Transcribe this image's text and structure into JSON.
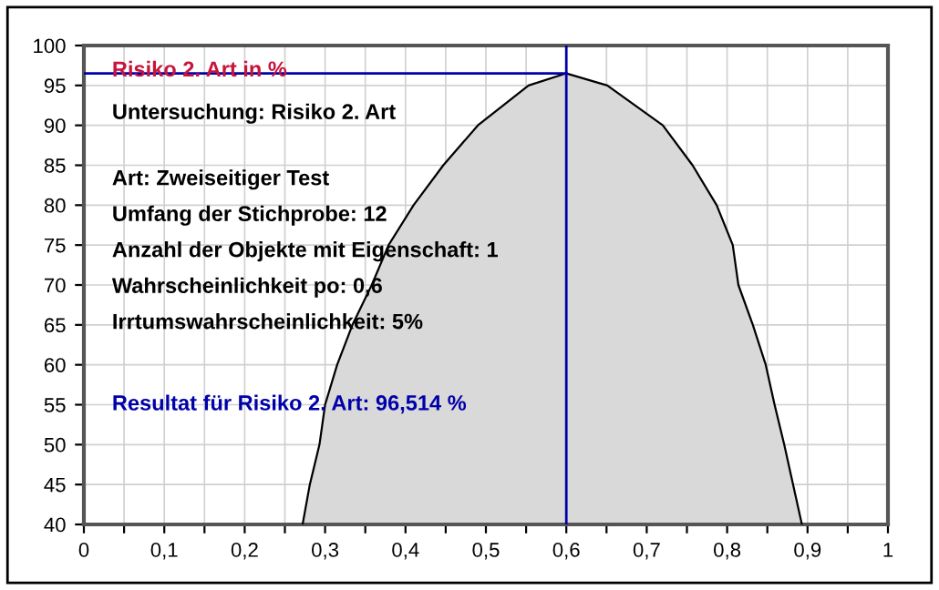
{
  "chart_data": {
    "type": "area",
    "title": "Risiko 2. Art in %",
    "annotations": [
      "Untersuchung: Risiko 2. Art",
      "Art: Zweiseitiger Test",
      "Umfang der Stichprobe: 12",
      "Anzahl der Objekte mit Eigenschaft: 1",
      "Wahrscheinlichkeit po: 0,6",
      "Irrtumswahrscheinlichkeit: 5%"
    ],
    "series": [
      {
        "color": "#d9d9d9",
        "x": [
          0.272,
          0.281,
          0.293,
          0.3,
          0.315,
          0.334,
          0.358,
          0.379,
          0.41,
          0.447,
          0.49,
          0.553,
          0.6,
          0.651,
          0.72,
          0.757,
          0.787,
          0.807,
          0.814,
          0.832,
          0.848,
          0.859,
          0.871,
          0.893
        ],
        "values": [
          40,
          45,
          50,
          55,
          60,
          65,
          70,
          75,
          80,
          85,
          90,
          95,
          96.514,
          95,
          90,
          85,
          80,
          75,
          70,
          65,
          60,
          55,
          50,
          40
        ]
      }
    ],
    "ref_lines": [
      {
        "axis": "x",
        "value": 0.6,
        "color": "#0000aa"
      },
      {
        "axis": "y",
        "value": 96.514,
        "color": "#0000aa",
        "label": "Resultat für Risiko 2. Art: 96,514 %"
      }
    ],
    "xlim": [
      0,
      1
    ],
    "ylim": [
      40,
      100
    ],
    "xticks": [
      {
        "value": 0,
        "label": "0"
      },
      {
        "value": 0.05,
        "label": null
      },
      {
        "value": 0.1,
        "label": "0,1"
      },
      {
        "value": 0.15,
        "label": null
      },
      {
        "value": 0.2,
        "label": "0,2"
      },
      {
        "value": 0.25,
        "label": null
      },
      {
        "value": 0.3,
        "label": "0,3"
      },
      {
        "value": 0.35,
        "label": null
      },
      {
        "value": 0.4,
        "label": "0,4"
      },
      {
        "value": 0.45,
        "label": null
      },
      {
        "value": 0.5,
        "label": "0,5"
      },
      {
        "value": 0.55,
        "label": null
      },
      {
        "value": 0.6,
        "label": "0,6"
      },
      {
        "value": 0.65,
        "label": null
      },
      {
        "value": 0.7,
        "label": "0,7"
      },
      {
        "value": 0.75,
        "label": null
      },
      {
        "value": 0.8,
        "label": "0,8"
      },
      {
        "value": 0.85,
        "label": null
      },
      {
        "value": 0.9,
        "label": "0,9"
      },
      {
        "value": 0.95,
        "label": null
      },
      {
        "value": 1,
        "label": "1"
      }
    ],
    "yticks": [
      40,
      45,
      50,
      55,
      60,
      65,
      70,
      75,
      80,
      85,
      90,
      95,
      100
    ],
    "grid": true
  }
}
